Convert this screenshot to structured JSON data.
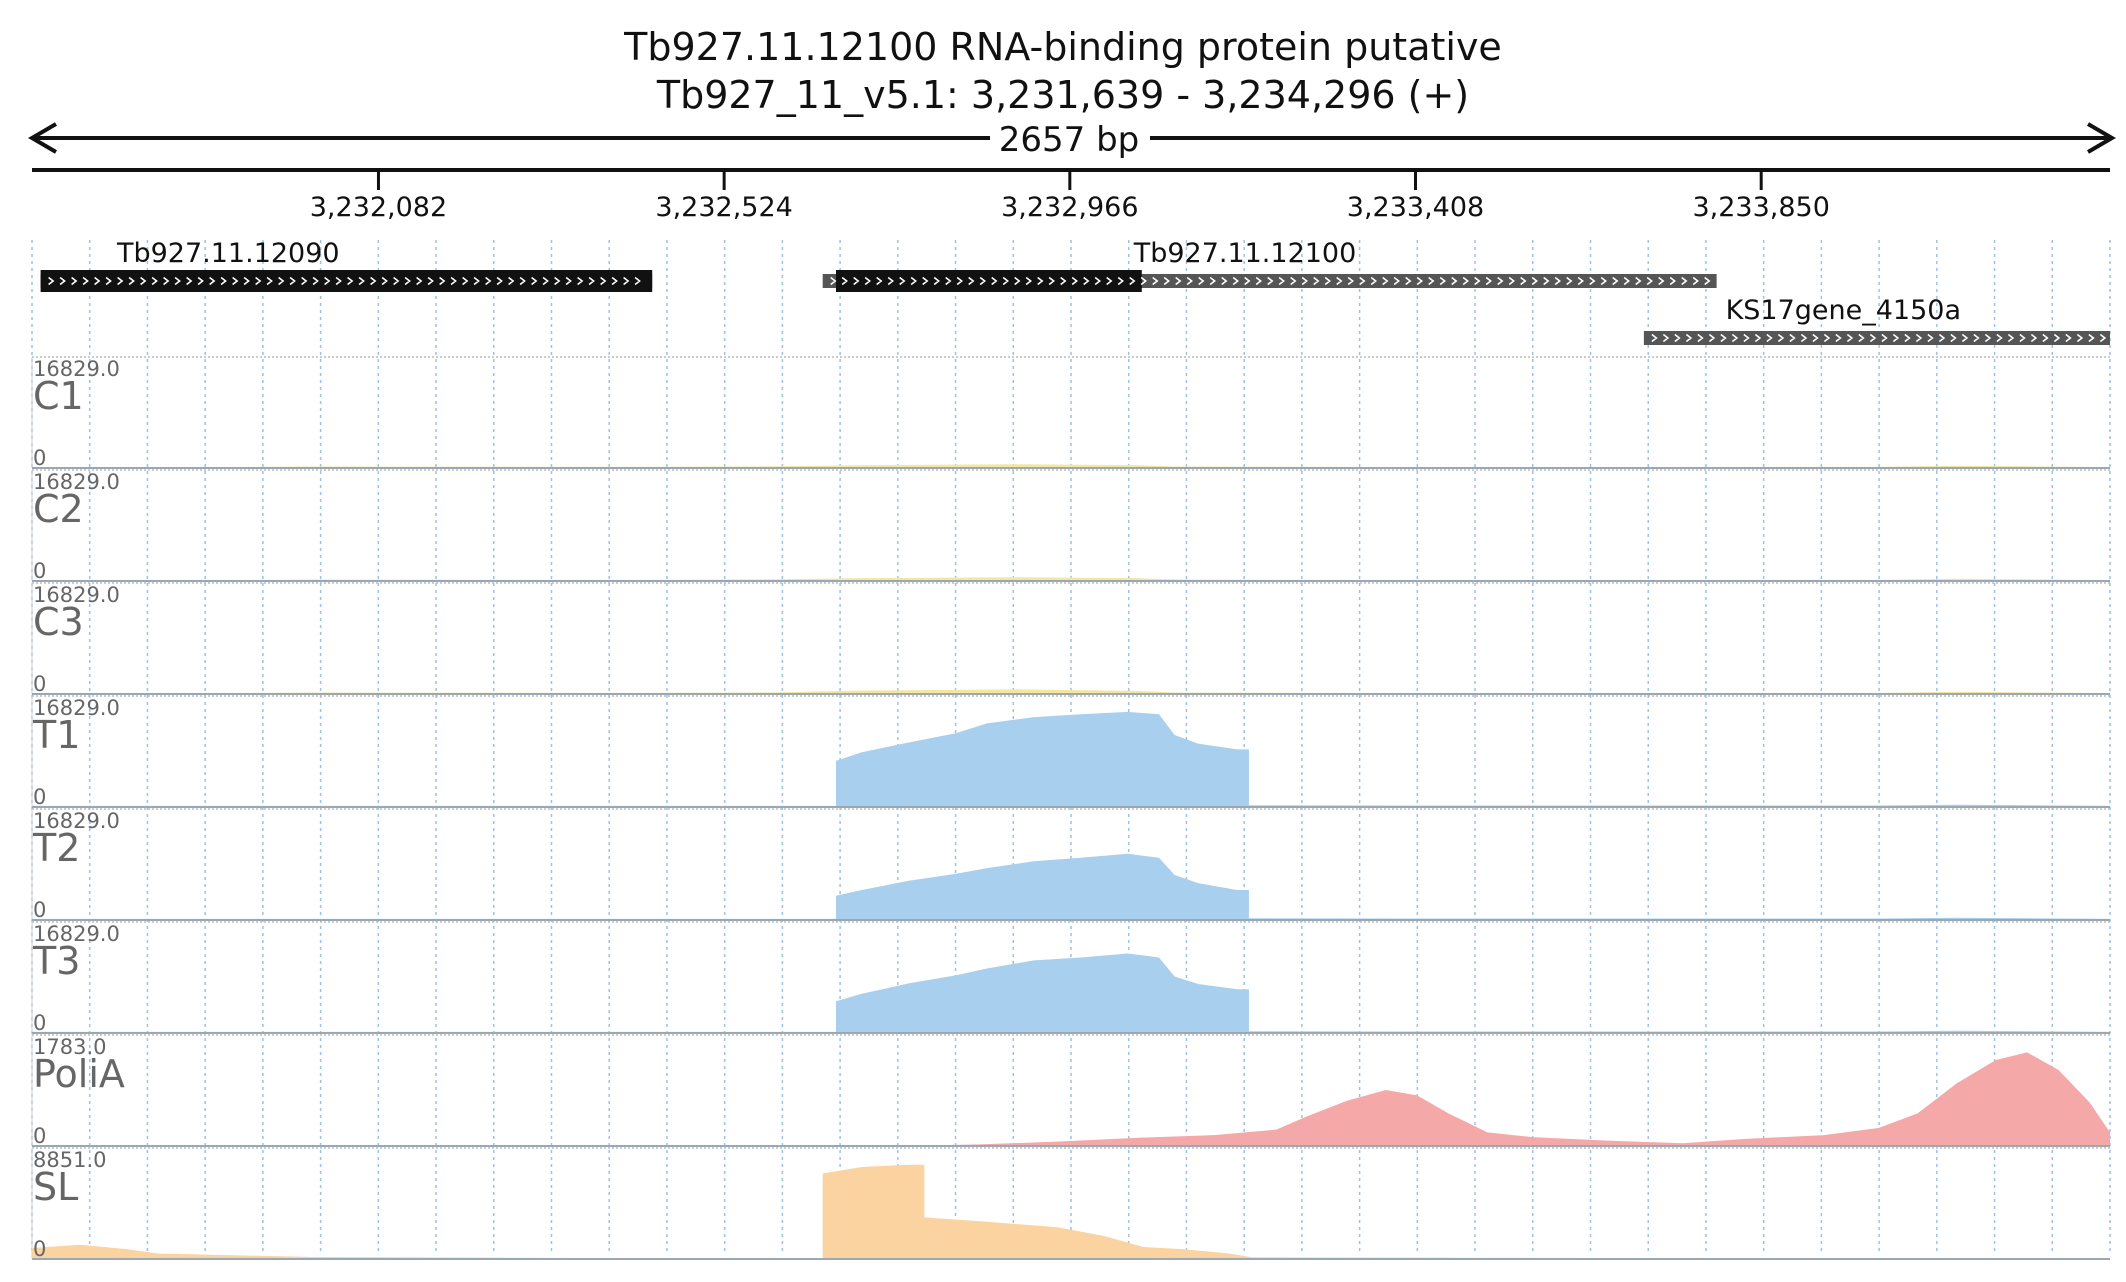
{
  "chart_data": {
    "type": "area",
    "title": "Tb927.11.12100  RNA-binding protein  putative",
    "subtitle": "Tb927_11_v5.1: 3,231,639 - 3,234,296 (+)",
    "span_label": "2657 bp",
    "xlim": [
      3231639,
      3234296
    ],
    "ticks": [
      {
        "pos": 3232082,
        "label": "3,232,082"
      },
      {
        "pos": 3232524,
        "label": "3,232,524"
      },
      {
        "pos": 3232966,
        "label": "3,232,966"
      },
      {
        "pos": 3233408,
        "label": "3,233,408"
      },
      {
        "pos": 3233850,
        "label": "3,233,850"
      }
    ],
    "grid": true,
    "genes": [
      {
        "name": "Tb927.11.12090",
        "start": 3231650,
        "end": 3232432,
        "cds_end": 3232432,
        "row": 0,
        "label_pos": 3231890
      },
      {
        "name": "Tb927.11.12100",
        "start": 3232650,
        "end": 3233793,
        "cds_start": 3232667,
        "cds_end": 3233058,
        "row": 0,
        "label_pos": 3233190
      },
      {
        "name": "KS17gene_4150a",
        "start": 3233700,
        "end": 3234296,
        "row": 1,
        "label_pos": 3233955
      }
    ],
    "tracks": [
      {
        "name": "C1",
        "max_label": "16829.0",
        "zero_label": "0",
        "max": 16829,
        "color": "#f3e6a0",
        "points": [
          [
            3231639,
            0
          ],
          [
            3232000,
            250
          ],
          [
            3232400,
            200
          ],
          [
            3232600,
            300
          ],
          [
            3232700,
            500
          ],
          [
            3232900,
            650
          ],
          [
            3233050,
            500
          ],
          [
            3233100,
            250
          ],
          [
            3233500,
            150
          ],
          [
            3234000,
            200
          ],
          [
            3234100,
            400
          ],
          [
            3234296,
            150
          ]
        ]
      },
      {
        "name": "C2",
        "max_label": "16829.0",
        "zero_label": "0",
        "max": 16829,
        "color": "#f3e6a0",
        "points": [
          [
            3231639,
            0
          ],
          [
            3232000,
            250
          ],
          [
            3232400,
            200
          ],
          [
            3232600,
            300
          ],
          [
            3232700,
            500
          ],
          [
            3232900,
            650
          ],
          [
            3233050,
            500
          ],
          [
            3233100,
            250
          ],
          [
            3233500,
            150
          ],
          [
            3234000,
            200
          ],
          [
            3234100,
            400
          ],
          [
            3234296,
            150
          ]
        ]
      },
      {
        "name": "C3",
        "max_label": "16829.0",
        "zero_label": "0",
        "max": 16829,
        "color": "#f3e6a0",
        "points": [
          [
            3231639,
            0
          ],
          [
            3232000,
            250
          ],
          [
            3232400,
            200
          ],
          [
            3232600,
            300
          ],
          [
            3232700,
            600
          ],
          [
            3232900,
            800
          ],
          [
            3233050,
            550
          ],
          [
            3233100,
            250
          ],
          [
            3233500,
            150
          ],
          [
            3234000,
            200
          ],
          [
            3234100,
            400
          ],
          [
            3234296,
            150
          ]
        ]
      },
      {
        "name": "T1",
        "max_label": "16829.0",
        "zero_label": "0",
        "max": 16829,
        "color": "#a9cfee",
        "points": [
          [
            3231639,
            200
          ],
          [
            3232667,
            200
          ],
          [
            3232667,
            8000
          ],
          [
            3232700,
            9500
          ],
          [
            3232760,
            11200
          ],
          [
            3232820,
            12800
          ],
          [
            3232860,
            14500
          ],
          [
            3232920,
            15600
          ],
          [
            3232980,
            16100
          ],
          [
            3233040,
            16500
          ],
          [
            3233080,
            16100
          ],
          [
            3233100,
            12500
          ],
          [
            3233130,
            11000
          ],
          [
            3233180,
            10000
          ],
          [
            3233195,
            10000
          ],
          [
            3233195,
            300
          ],
          [
            3233500,
            250
          ],
          [
            3234000,
            250
          ],
          [
            3234100,
            400
          ],
          [
            3234296,
            200
          ]
        ]
      },
      {
        "name": "T2",
        "max_label": "16829.0",
        "zero_label": "0",
        "max": 16829,
        "color": "#a9cfee",
        "points": [
          [
            3231639,
            200
          ],
          [
            3232667,
            200
          ],
          [
            3232667,
            4200
          ],
          [
            3232700,
            5200
          ],
          [
            3232760,
            6800
          ],
          [
            3232820,
            8000
          ],
          [
            3232860,
            9000
          ],
          [
            3232920,
            10200
          ],
          [
            3232980,
            10800
          ],
          [
            3233040,
            11500
          ],
          [
            3233080,
            10800
          ],
          [
            3233100,
            7800
          ],
          [
            3233130,
            6400
          ],
          [
            3233180,
            5200
          ],
          [
            3233195,
            5200
          ],
          [
            3233195,
            300
          ],
          [
            3233500,
            250
          ],
          [
            3234000,
            250
          ],
          [
            3234100,
            400
          ],
          [
            3234296,
            200
          ]
        ]
      },
      {
        "name": "T3",
        "max_label": "16829.0",
        "zero_label": "0",
        "max": 16829,
        "color": "#a9cfee",
        "points": [
          [
            3231639,
            200
          ],
          [
            3232667,
            200
          ],
          [
            3232667,
            5500
          ],
          [
            3232700,
            6800
          ],
          [
            3232760,
            8600
          ],
          [
            3232820,
            10000
          ],
          [
            3232860,
            11200
          ],
          [
            3232920,
            12600
          ],
          [
            3232980,
            13100
          ],
          [
            3233040,
            13800
          ],
          [
            3233080,
            13100
          ],
          [
            3233100,
            9800
          ],
          [
            3233130,
            8500
          ],
          [
            3233180,
            7600
          ],
          [
            3233195,
            7600
          ],
          [
            3233195,
            300
          ],
          [
            3233500,
            250
          ],
          [
            3234000,
            250
          ],
          [
            3234100,
            400
          ],
          [
            3234296,
            200
          ]
        ]
      },
      {
        "name": "PoliA",
        "max_label": "1783.0",
        "zero_label": "0",
        "max": 1783,
        "color": "#f4a8a8",
        "points": [
          [
            3231639,
            0
          ],
          [
            3232750,
            0
          ],
          [
            3232850,
            30
          ],
          [
            3232950,
            80
          ],
          [
            3233050,
            150
          ],
          [
            3233150,
            200
          ],
          [
            3233230,
            300
          ],
          [
            3233270,
            550
          ],
          [
            3233320,
            830
          ],
          [
            3233370,
            1030
          ],
          [
            3233410,
            930
          ],
          [
            3233450,
            600
          ],
          [
            3233500,
            250
          ],
          [
            3233560,
            160
          ],
          [
            3233650,
            100
          ],
          [
            3233750,
            50
          ],
          [
            3233830,
            130
          ],
          [
            3233930,
            200
          ],
          [
            3234000,
            330
          ],
          [
            3234050,
            600
          ],
          [
            3234100,
            1150
          ],
          [
            3234150,
            1580
          ],
          [
            3234190,
            1720
          ],
          [
            3234230,
            1400
          ],
          [
            3234270,
            800
          ],
          [
            3234296,
            250
          ]
        ]
      },
      {
        "name": "SL",
        "max_label": "8851.0",
        "zero_label": "0",
        "max": 8851,
        "color": "#fbd3a0",
        "points": [
          [
            3231639,
            1000
          ],
          [
            3231700,
            1300
          ],
          [
            3231760,
            900
          ],
          [
            3231800,
            500
          ],
          [
            3232000,
            180
          ],
          [
            3232650,
            0
          ],
          [
            3232650,
            7800
          ],
          [
            3232700,
            8400
          ],
          [
            3232760,
            8600
          ],
          [
            3232780,
            8600
          ],
          [
            3232780,
            3800
          ],
          [
            3232860,
            3400
          ],
          [
            3232950,
            2900
          ],
          [
            3233010,
            2100
          ],
          [
            3233060,
            1100
          ],
          [
            3233110,
            900
          ],
          [
            3233170,
            500
          ],
          [
            3233200,
            150
          ],
          [
            3234296,
            0
          ]
        ]
      }
    ]
  }
}
